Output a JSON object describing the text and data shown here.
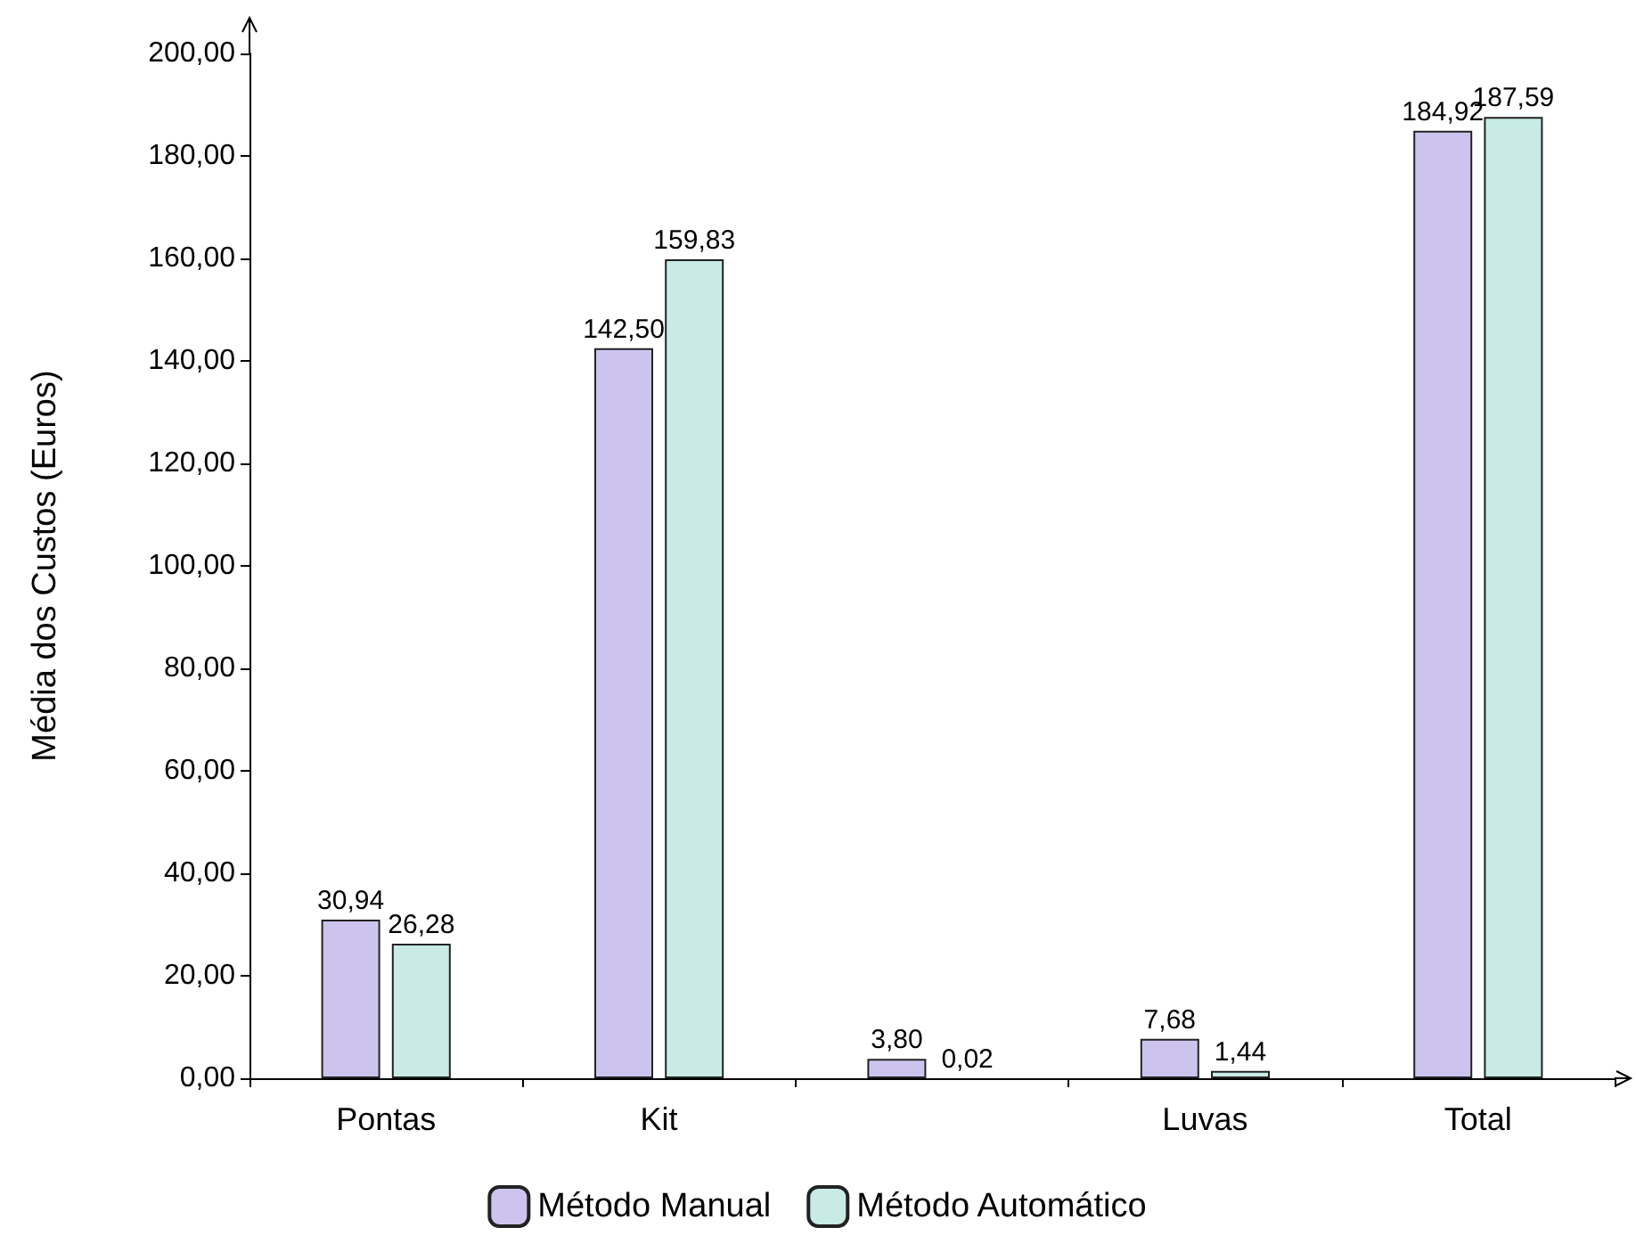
{
  "chart_data": {
    "type": "bar",
    "ylabel": "Média dos Custos (Euros)",
    "categories": [
      "Pontas",
      "Kit",
      null,
      "Luvas",
      "Total"
    ],
    "series": [
      {
        "name": "Método Manual",
        "color": "#cdc4ee",
        "values": [
          30.94,
          142.5,
          3.8,
          7.68,
          184.92
        ],
        "value_labels": [
          "30,94",
          "142,50",
          "3,80",
          "7,68",
          "184,92"
        ]
      },
      {
        "name": "Método Automático",
        "color": "#c8ebe6",
        "values": [
          26.28,
          159.83,
          0.02,
          1.44,
          187.59
        ],
        "value_labels": [
          "26,28",
          "159,83",
          "0,02",
          "1,44",
          "187,59"
        ]
      }
    ],
    "ylim": [
      0,
      200
    ],
    "yticks": [
      {
        "value": 0,
        "label": "0,00"
      },
      {
        "value": 20,
        "label": "20,00"
      },
      {
        "value": 40,
        "label": "40,00"
      },
      {
        "value": 60,
        "label": "60,00"
      },
      {
        "value": 80,
        "label": "80,00"
      },
      {
        "value": 100,
        "label": "100,00"
      },
      {
        "value": 120,
        "label": "120,00"
      },
      {
        "value": 140,
        "label": "140,00"
      },
      {
        "value": 160,
        "label": "160,00"
      },
      {
        "value": 180,
        "label": "180,00"
      },
      {
        "value": 200,
        "label": "200,00"
      }
    ],
    "grid": false,
    "legend": "bottom"
  }
}
